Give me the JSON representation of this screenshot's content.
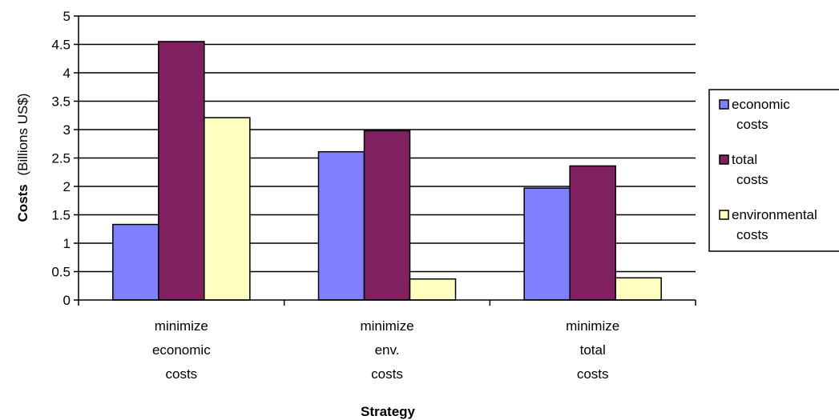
{
  "chart_data": {
    "type": "bar",
    "categories": [
      [
        "minimize",
        "economic",
        "costs"
      ],
      [
        "minimize",
        "env.",
        "costs"
      ],
      [
        "minimize",
        "total",
        "costs"
      ]
    ],
    "series": [
      {
        "name": "economic costs",
        "legend_lines": [
          "economic",
          "costs"
        ],
        "color": "#8080FF",
        "values": [
          1.33,
          2.61,
          1.97
        ]
      },
      {
        "name": "total costs",
        "legend_lines": [
          "total",
          "costs"
        ],
        "color": "#802060",
        "values": [
          4.55,
          2.98,
          2.36
        ]
      },
      {
        "name": "environmental costs",
        "legend_lines": [
          "environmental",
          "costs"
        ],
        "color": "#FFFFC0",
        "values": [
          3.21,
          0.37,
          0.39
        ]
      }
    ],
    "xlabel": "Strategy",
    "ylabel": {
      "bold": "Costs",
      "normal": "(Billions US$)"
    },
    "ylim": [
      0,
      5
    ],
    "yticks": [
      "0",
      "0.5",
      "1",
      "1.5",
      "2",
      "2.5",
      "3",
      "3.5",
      "4",
      "4.5",
      "5"
    ],
    "grid": true,
    "legend_position": "right"
  }
}
